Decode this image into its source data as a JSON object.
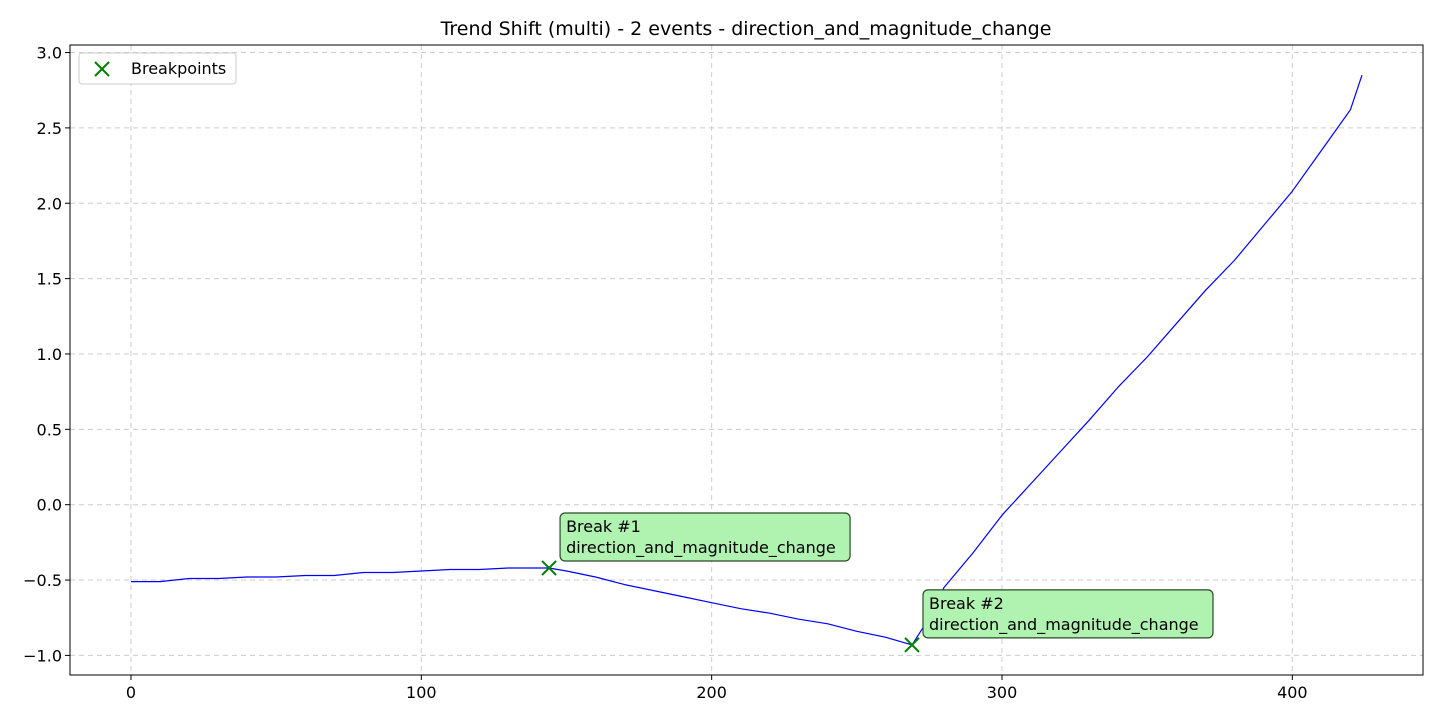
{
  "chart_data": {
    "type": "line",
    "title": "Trend Shift (multi) - 2 events - direction_and_magnitude_change",
    "xlabel": "",
    "ylabel": "",
    "xlim": [
      -21,
      445
    ],
    "ylim": [
      -1.13,
      3.05
    ],
    "x_ticks": [
      0,
      100,
      200,
      300,
      400
    ],
    "y_ticks": [
      -1.0,
      -0.5,
      0.0,
      0.5,
      1.0,
      1.5,
      2.0,
      2.5,
      3.0
    ],
    "x_tick_labels": [
      "0",
      "100",
      "200",
      "300",
      "400"
    ],
    "y_tick_labels": [
      "−1.0",
      "−0.5",
      "0.0",
      "0.5",
      "1.0",
      "1.5",
      "2.0",
      "2.5",
      "3.0"
    ],
    "grid": true,
    "legend": {
      "placement": "upper-left",
      "entries": [
        "Breakpoints"
      ]
    },
    "series": [
      {
        "color": "#0000ff",
        "x": [
          0,
          10,
          20,
          30,
          40,
          50,
          60,
          70,
          80,
          90,
          100,
          110,
          120,
          130,
          144,
          150,
          160,
          170,
          180,
          190,
          200,
          210,
          220,
          230,
          240,
          250,
          260,
          269,
          275,
          280,
          290,
          300,
          310,
          320,
          330,
          340,
          350,
          360,
          370,
          380,
          390,
          400,
          410,
          420,
          424
        ],
        "y": [
          -0.51,
          -0.51,
          -0.49,
          -0.49,
          -0.48,
          -0.48,
          -0.47,
          -0.47,
          -0.45,
          -0.45,
          -0.44,
          -0.43,
          -0.43,
          -0.42,
          -0.42,
          -0.44,
          -0.48,
          -0.53,
          -0.57,
          -0.61,
          -0.65,
          -0.69,
          -0.72,
          -0.76,
          -0.79,
          -0.84,
          -0.88,
          -0.93,
          -0.75,
          -0.55,
          -0.32,
          -0.07,
          0.14,
          0.35,
          0.56,
          0.78,
          0.98,
          1.2,
          1.42,
          1.62,
          1.85,
          2.08,
          2.35,
          2.62,
          2.85
        ]
      }
    ],
    "breakpoints": {
      "name": "Breakpoints",
      "color": "#008000",
      "points": [
        {
          "x": 144,
          "y": -0.42,
          "label_line1": "Break #1",
          "label_line2": "direction_and_magnitude_change"
        },
        {
          "x": 269,
          "y": -0.93,
          "label_line1": "Break #2",
          "label_line2": "direction_and_magnitude_change"
        }
      ]
    }
  }
}
